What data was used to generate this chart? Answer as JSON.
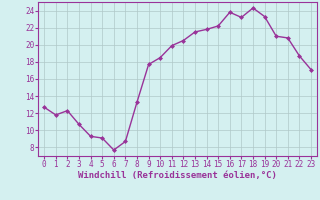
{
  "x": [
    0,
    1,
    2,
    3,
    4,
    5,
    6,
    7,
    8,
    9,
    10,
    11,
    12,
    13,
    14,
    15,
    16,
    17,
    18,
    19,
    20,
    21,
    22,
    23
  ],
  "y": [
    12.7,
    11.8,
    12.3,
    10.7,
    9.3,
    9.1,
    7.7,
    8.7,
    13.3,
    17.7,
    18.5,
    19.9,
    20.5,
    21.5,
    21.8,
    22.2,
    23.8,
    23.2,
    24.3,
    23.3,
    21.0,
    20.8,
    18.7,
    17.1
  ],
  "line_color": "#993399",
  "marker": "D",
  "marker_size": 2,
  "bg_color": "#d4f0f0",
  "grid_color": "#b0c8c8",
  "xlabel": "Windchill (Refroidissement éolien,°C)",
  "xlabel_color": "#993399",
  "ylabel_ticks": [
    8,
    10,
    12,
    14,
    16,
    18,
    20,
    22,
    24
  ],
  "xtick_labels": [
    "0",
    "1",
    "2",
    "3",
    "4",
    "5",
    "6",
    "7",
    "8",
    "9",
    "10",
    "11",
    "12",
    "13",
    "14",
    "15",
    "16",
    "17",
    "18",
    "19",
    "20",
    "21",
    "22",
    "23"
  ],
  "ylim": [
    7,
    25
  ],
  "xlim": [
    -0.5,
    23.5
  ],
  "tick_color": "#993399",
  "tick_fontsize": 5.5,
  "xlabel_fontsize": 6.5,
  "linewidth": 1.0
}
